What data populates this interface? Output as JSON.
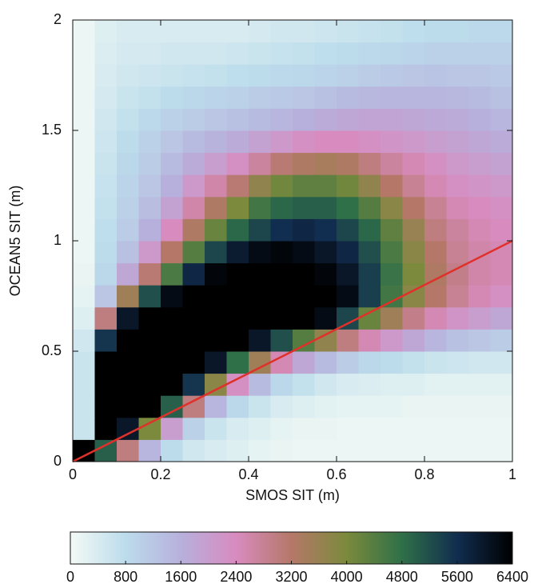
{
  "chart_data": {
    "type": "heatmap",
    "xlabel": "SMOS SIT (m)",
    "ylabel": "OCEAN5 SIT (m)",
    "xlim": [
      0,
      1
    ],
    "ylim": [
      0,
      2
    ],
    "xticks": [
      0,
      0.2,
      0.4,
      0.6,
      0.8,
      1
    ],
    "yticks": [
      0,
      0.5,
      1,
      1.5,
      2
    ],
    "x_bins": [
      0,
      0.05,
      0.1,
      0.15,
      0.2,
      0.25,
      0.3,
      0.35,
      0.4,
      0.45,
      0.5,
      0.55,
      0.6,
      0.65,
      0.7,
      0.75,
      0.8,
      0.85,
      0.9,
      0.95,
      1
    ],
    "y_bins": [
      0,
      0.1,
      0.2,
      0.3,
      0.4,
      0.5,
      0.6,
      0.7,
      0.8,
      0.9,
      1,
      1.1,
      1.2,
      1.3,
      1.4,
      1.5,
      1.6,
      1.7,
      1.8,
      1.9,
      2
    ],
    "z": [
      [
        6400,
        5000,
        3000,
        1500,
        800,
        500,
        400,
        300,
        200,
        150,
        100,
        100,
        100,
        100,
        100,
        100,
        100,
        100,
        100,
        100
      ],
      [
        600,
        6400,
        6000,
        4000,
        2000,
        1000,
        600,
        400,
        300,
        200,
        150,
        150,
        100,
        100,
        100,
        100,
        100,
        100,
        100,
        100
      ],
      [
        600,
        6400,
        6400,
        6400,
        5000,
        3000,
        1500,
        900,
        600,
        400,
        300,
        250,
        200,
        200,
        200,
        150,
        150,
        150,
        150,
        150
      ],
      [
        600,
        6400,
        6400,
        6400,
        6400,
        5500,
        3800,
        2300,
        1400,
        900,
        700,
        500,
        400,
        350,
        300,
        300,
        250,
        250,
        250,
        250
      ],
      [
        600,
        6400,
        6400,
        6400,
        6400,
        6400,
        6000,
        4800,
        3500,
        2500,
        1800,
        1400,
        1100,
        900,
        800,
        700,
        600,
        550,
        500,
        500
      ],
      [
        500,
        5500,
        6400,
        6400,
        6400,
        6400,
        6400,
        6400,
        6000,
        5200,
        4400,
        3700,
        3000,
        2500,
        2100,
        1800,
        1500,
        1300,
        1200,
        1100
      ],
      [
        300,
        3000,
        6000,
        6400,
        6400,
        6400,
        6400,
        6400,
        6400,
        6400,
        6400,
        6200,
        5300,
        4200,
        3500,
        2900,
        2500,
        2200,
        2000,
        1800
      ],
      [
        200,
        1200,
        3500,
        5200,
        6200,
        6400,
        6400,
        6400,
        6400,
        6400,
        6400,
        6400,
        6200,
        5400,
        4600,
        3800,
        3200,
        2800,
        2500,
        2300
      ],
      [
        150,
        900,
        1800,
        3100,
        4500,
        5700,
        6300,
        6400,
        6400,
        6400,
        6400,
        6300,
        6000,
        5400,
        4700,
        4000,
        3300,
        2900,
        2600,
        2500
      ],
      [
        100,
        800,
        1300,
        2100,
        3200,
        4400,
        5300,
        5900,
        6200,
        6300,
        6200,
        6000,
        5700,
        5200,
        4500,
        3800,
        3200,
        2800,
        2600,
        2500
      ],
      [
        100,
        750,
        1100,
        1600,
        2400,
        3300,
        4200,
        4900,
        5300,
        5600,
        5700,
        5600,
        5300,
        4900,
        4300,
        3600,
        3000,
        2700,
        2500,
        2400
      ],
      [
        100,
        700,
        1000,
        1350,
        1900,
        2600,
        3300,
        4000,
        4600,
        4900,
        5000,
        5000,
        4800,
        4400,
        3800,
        3200,
        2800,
        2500,
        2400,
        2300
      ],
      [
        100,
        650,
        950,
        1200,
        1600,
        2100,
        2600,
        3100,
        3700,
        4100,
        4300,
        4300,
        4100,
        3700,
        3200,
        2800,
        2500,
        2300,
        2200,
        2100
      ],
      [
        100,
        600,
        900,
        1100,
        1400,
        1700,
        2000,
        2300,
        2700,
        3100,
        3300,
        3400,
        3300,
        3000,
        2700,
        2500,
        2300,
        2100,
        2000,
        1900
      ],
      [
        100,
        550,
        800,
        1000,
        1200,
        1400,
        1550,
        1700,
        1900,
        2100,
        2300,
        2400,
        2400,
        2300,
        2200,
        2100,
        2000,
        1900,
        1800,
        1700
      ],
      [
        100,
        500,
        700,
        850,
        1000,
        1100,
        1200,
        1300,
        1400,
        1500,
        1600,
        1700,
        1800,
        1850,
        1850,
        1800,
        1750,
        1700,
        1600,
        1500
      ],
      [
        100,
        450,
        600,
        700,
        800,
        900,
        950,
        1000,
        1100,
        1150,
        1200,
        1300,
        1400,
        1450,
        1500,
        1500,
        1500,
        1450,
        1400,
        1300
      ],
      [
        100,
        400,
        500,
        550,
        600,
        650,
        700,
        750,
        800,
        850,
        900,
        950,
        1000,
        1100,
        1150,
        1200,
        1250,
        1200,
        1200,
        1150
      ],
      [
        100,
        350,
        450,
        450,
        500,
        500,
        500,
        550,
        600,
        650,
        700,
        750,
        800,
        850,
        900,
        950,
        1000,
        1000,
        1000,
        1000
      ],
      [
        100,
        300,
        400,
        400,
        400,
        400,
        400,
        400,
        450,
        500,
        500,
        550,
        600,
        650,
        700,
        750,
        800,
        800,
        850,
        850
      ]
    ],
    "clim": [
      0,
      6400
    ],
    "colormap": [
      "#f3faf5",
      "#bcdcec",
      "#b7b0dc",
      "#d88bbf",
      "#b57868",
      "#7b8a3c",
      "#2f7048",
      "#112d4f",
      "#000000"
    ],
    "colorbar_ticks": [
      0,
      800,
      1600,
      2400,
      3200,
      4000,
      4800,
      5600,
      6400
    ],
    "lines": [
      {
        "x": [
          0,
          1
        ],
        "y": [
          0,
          1
        ],
        "color": "#e0302a"
      }
    ]
  }
}
